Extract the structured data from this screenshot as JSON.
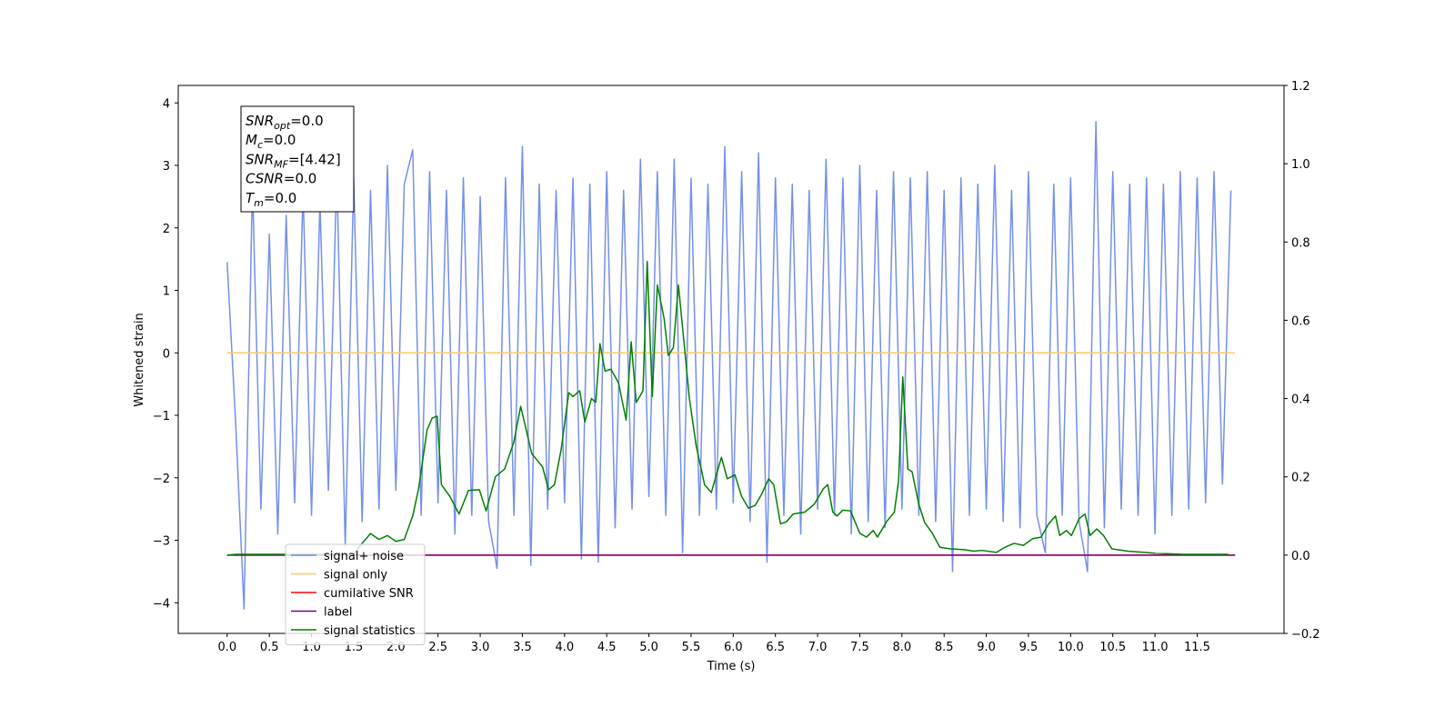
{
  "chart_data": {
    "type": "line",
    "xlabel": "Time (s)",
    "ylabel": "Whitened strain",
    "xlim": [
      -0.58,
      12.53
    ],
    "ylim": [
      -4.49,
      4.28
    ],
    "y2lim": [
      -0.2,
      1.2
    ],
    "xticks": [
      {
        "value": 0,
        "label": "0.0"
      },
      0.5,
      {
        "value": 1,
        "label": "1.0"
      },
      1.5,
      {
        "value": 2,
        "label": "2.0"
      },
      2.5,
      {
        "value": 3,
        "label": "3.0"
      },
      3.5,
      {
        "value": 4,
        "label": "4.0"
      },
      4.5,
      {
        "value": 5,
        "label": "5.0"
      },
      5.5,
      {
        "value": 6,
        "label": "6.0"
      },
      6.5,
      {
        "value": 7,
        "label": "7.0"
      },
      7.5,
      {
        "value": 8,
        "label": "8.0"
      },
      8.5,
      {
        "value": 9,
        "label": "9.0"
      },
      9.5,
      {
        "value": 10,
        "label": "10.0"
      },
      10.5,
      {
        "value": 11,
        "label": "11.0"
      },
      11.5
    ],
    "yticks": [
      {
        "value": -4,
        "label": "−4"
      },
      {
        "value": -3,
        "label": "−3"
      },
      {
        "value": -2,
        "label": "−2"
      },
      {
        "value": -1,
        "label": "−1"
      },
      0,
      1,
      2,
      3,
      4
    ],
    "y2ticks": [
      {
        "value": -0.2,
        "label": "−0.2"
      },
      {
        "value": 0,
        "label": "0.0"
      },
      0.2,
      0.4,
      0.6,
      0.8,
      {
        "value": 1,
        "label": "1.0"
      },
      1.2
    ],
    "legend": "lower left",
    "annotation": [
      {
        "symbol": "SNR",
        "subscript": "opt",
        "text": "=0.0"
      },
      {
        "symbol": "M",
        "subscript": "c",
        "text": "=0.0"
      },
      {
        "symbol": "SNR",
        "subscript": "MF",
        "text": "=[4.42]"
      },
      {
        "symbol": "CSNR",
        "text": "=0.0"
      },
      {
        "symbol": "T",
        "subscript": "m",
        "text": "=0.0"
      }
    ],
    "series": [
      {
        "name": "signal+ noise",
        "color": "#6f8ae6",
        "x": [
          0,
          0.1,
          0.2,
          0.3,
          0.4,
          0.5,
          0.6,
          0.7,
          0.8,
          0.9,
          1,
          1.1,
          1.2,
          1.3,
          1.4,
          1.5,
          1.6,
          1.7,
          1.8,
          1.9,
          2,
          2.1,
          2.2,
          2.3,
          2.4,
          2.5,
          2.6,
          2.7,
          2.8,
          2.9,
          3,
          3.1,
          3.2,
          3.3,
          3.4,
          3.5,
          3.6,
          3.7,
          3.8,
          3.9,
          4,
          4.1,
          4.2,
          4.3,
          4.4,
          4.5,
          4.6,
          4.7,
          4.8,
          4.9,
          5,
          5.1,
          5.2,
          5.3,
          5.4,
          5.5,
          5.6,
          5.7,
          5.8,
          5.9,
          6,
          6.1,
          6.2,
          6.3,
          6.4,
          6.5,
          6.6,
          6.7,
          6.8,
          6.9,
          7,
          7.1,
          7.2,
          7.3,
          7.4,
          7.5,
          7.6,
          7.7,
          7.8,
          7.9,
          8,
          8.1,
          8.2,
          8.3,
          8.4,
          8.5,
          8.6,
          8.7,
          8.8,
          8.9,
          9,
          9.1,
          9.2,
          9.3,
          9.4,
          9.5,
          9.6,
          9.7,
          9.8,
          9.9,
          10,
          10.1,
          10.2,
          10.3,
          10.4,
          10.5,
          10.6,
          10.7,
          10.8,
          10.9,
          11,
          11.1,
          11.2,
          11.3,
          11.4,
          11.5,
          11.6,
          11.7,
          11.8,
          11.9
        ],
        "values": [
          1.45,
          -1.1,
          -4.1,
          2.7,
          -2.5,
          1.9,
          -2.9,
          2.2,
          -2.4,
          2.6,
          -2.6,
          2.4,
          -2.2,
          2.9,
          -3.1,
          2.8,
          -2.7,
          2.6,
          -2.5,
          3.0,
          -2.2,
          2.7,
          3.25,
          -2.6,
          2.9,
          -2.4,
          2.6,
          -2.9,
          2.8,
          -2.6,
          2.5,
          -2.7,
          -3.45,
          2.8,
          -2.6,
          3.3,
          -3.4,
          2.7,
          -2.5,
          2.6,
          -2.4,
          2.8,
          -3.3,
          2.7,
          -3.35,
          2.9,
          -2.8,
          2.6,
          -2.5,
          3.1,
          -2.3,
          2.9,
          -2.6,
          3.1,
          -3.2,
          2.8,
          -2.6,
          2.7,
          -2.5,
          3.3,
          -2.4,
          2.9,
          -2.7,
          3.2,
          -3.35,
          2.8,
          -2.6,
          2.7,
          -2.9,
          2.6,
          -2.5,
          3.1,
          -2.6,
          2.8,
          -2.9,
          3.0,
          -2.7,
          2.6,
          -2.8,
          2.9,
          -2.5,
          2.8,
          -2.6,
          2.9,
          -2.7,
          2.6,
          -3.5,
          2.8,
          -2.6,
          2.7,
          -2.5,
          3.0,
          -2.7,
          2.6,
          -2.8,
          2.9,
          -2.6,
          -3.2,
          2.7,
          -2.6,
          2.8,
          -2.7,
          -3.5,
          3.7,
          -2.8,
          2.9,
          -2.5,
          2.7,
          -2.6,
          2.8,
          -2.9,
          2.7,
          -2.6,
          2.9,
          -2.5,
          2.8,
          -2.4,
          2.9,
          -2.1,
          2.6
        ]
      },
      {
        "name": "signal only",
        "color": "#ffc866",
        "x": [
          0,
          11.95
        ],
        "values": [
          0,
          0
        ]
      },
      {
        "name": "cumilative SNR",
        "color": "#ff0000",
        "axis": "y2",
        "x": [
          0,
          11.95
        ],
        "values": [
          0,
          0
        ]
      },
      {
        "name": "label",
        "color": "#800080",
        "axis": "y2",
        "x": [
          0,
          11.95
        ],
        "values": [
          0,
          0
        ]
      },
      {
        "name": "signal statistics",
        "color": "#008000",
        "axis": "y2",
        "x": [
          0,
          0.1,
          1.5,
          1.6,
          1.7,
          1.8,
          1.9,
          2.0,
          2.1,
          2.2,
          2.27,
          2.37,
          2.43,
          2.49,
          2.54,
          2.64,
          2.75,
          2.86,
          2.99,
          3.07,
          3.18,
          3.29,
          3.4,
          3.48,
          3.61,
          3.74,
          3.81,
          3.88,
          3.96,
          4.05,
          4.1,
          4.18,
          4.24,
          4.32,
          4.37,
          4.42,
          4.48,
          4.55,
          4.64,
          4.73,
          4.79,
          4.85,
          4.93,
          4.98,
          5.04,
          5.1,
          5.18,
          5.23,
          5.29,
          5.35,
          5.42,
          5.48,
          5.56,
          5.66,
          5.74,
          5.86,
          5.93,
          6.02,
          6.1,
          6.18,
          6.26,
          6.34,
          6.42,
          6.48,
          6.56,
          6.63,
          6.71,
          6.85,
          6.96,
          7.07,
          7.12,
          7.18,
          7.23,
          7.3,
          7.39,
          7.5,
          7.58,
          7.66,
          7.71,
          7.82,
          7.91,
          7.96,
          8.01,
          8.07,
          8.12,
          8.2,
          8.27,
          8.36,
          8.45,
          8.58,
          8.74,
          8.85,
          8.95,
          9.12,
          9.22,
          9.33,
          9.44,
          9.55,
          9.65,
          9.74,
          9.82,
          9.87,
          9.95,
          10.01,
          10.1,
          10.17,
          10.23,
          10.31,
          10.39,
          10.49,
          10.68,
          11.0,
          11.33,
          11.87
        ],
        "values": [
          0,
          0.002,
          0.002,
          0.03,
          0.055,
          0.04,
          0.05,
          0.035,
          0.04,
          0.1,
          0.17,
          0.32,
          0.35,
          0.355,
          0.18,
          0.15,
          0.105,
          0.165,
          0.167,
          0.113,
          0.2,
          0.22,
          0.29,
          0.38,
          0.26,
          0.225,
          0.167,
          0.18,
          0.27,
          0.415,
          0.405,
          0.42,
          0.34,
          0.4,
          0.39,
          0.54,
          0.47,
          0.475,
          0.44,
          0.345,
          0.545,
          0.39,
          0.42,
          0.75,
          0.405,
          0.69,
          0.605,
          0.51,
          0.53,
          0.69,
          0.535,
          0.4,
          0.28,
          0.18,
          0.16,
          0.25,
          0.195,
          0.205,
          0.15,
          0.12,
          0.127,
          0.157,
          0.195,
          0.18,
          0.08,
          0.085,
          0.105,
          0.11,
          0.13,
          0.17,
          0.18,
          0.11,
          0.1,
          0.115,
          0.113,
          0.056,
          0.046,
          0.063,
          0.046,
          0.086,
          0.11,
          0.19,
          0.455,
          0.22,
          0.213,
          0.13,
          0.083,
          0.056,
          0.02,
          0.016,
          0.014,
          0.01,
          0.012,
          0.007,
          0.02,
          0.03,
          0.025,
          0.042,
          0.046,
          0.08,
          0.1,
          0.05,
          0.063,
          0.05,
          0.093,
          0.105,
          0.05,
          0.067,
          0.05,
          0.016,
          0.01,
          0.005,
          0.002,
          0.002
        ]
      }
    ]
  }
}
